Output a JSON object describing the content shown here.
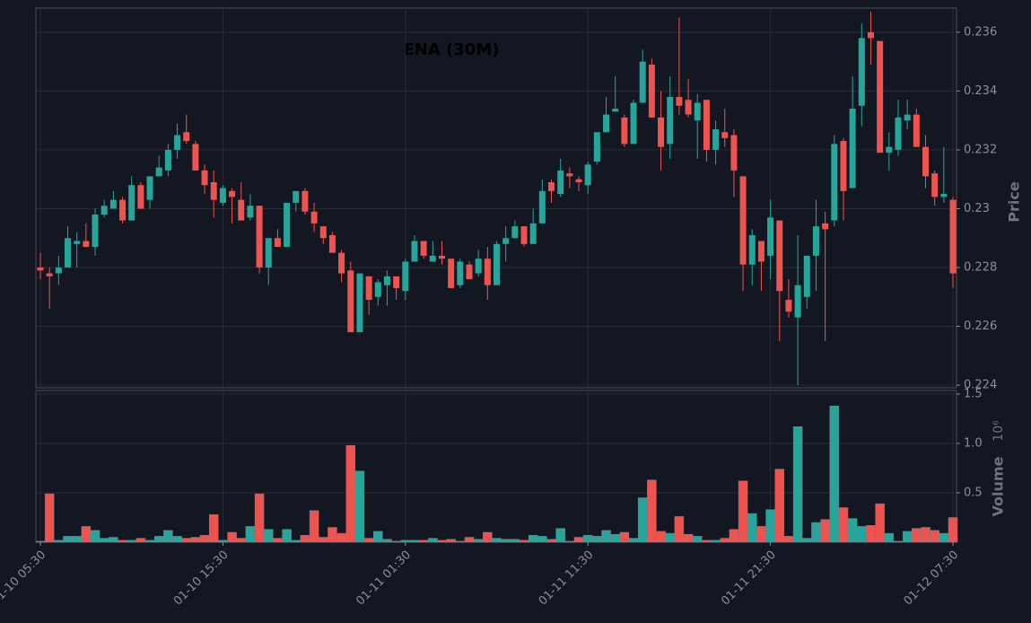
{
  "chart_data": [
    {
      "type": "candlestick",
      "title": "ENA (30M)",
      "ylabel": "Price",
      "categories": [
        "01-10 05:30",
        null,
        null,
        null,
        null,
        null,
        null,
        null,
        null,
        null,
        null,
        null,
        null,
        null,
        null,
        null,
        null,
        null,
        null,
        null,
        "01-10 15:30",
        null,
        null,
        null,
        null,
        null,
        null,
        null,
        null,
        null,
        null,
        null,
        null,
        null,
        null,
        null,
        null,
        null,
        null,
        null,
        "01-11 01:30",
        null,
        null,
        null,
        null,
        null,
        null,
        null,
        null,
        null,
        null,
        null,
        null,
        null,
        null,
        null,
        null,
        null,
        null,
        null,
        "01-11 11:30",
        null,
        null,
        null,
        null,
        null,
        null,
        null,
        null,
        null,
        null,
        null,
        null,
        null,
        null,
        null,
        null,
        null,
        null,
        null,
        "01-11 21:30",
        null,
        null,
        null,
        null,
        null,
        null,
        null,
        null,
        null,
        null,
        null,
        null,
        null,
        null,
        null,
        null,
        null,
        null,
        null,
        "01-12 07:30"
      ],
      "open": [
        0.228,
        0.2278,
        0.2278,
        0.228,
        0.2288,
        0.2289,
        0.2287,
        0.2298,
        0.23,
        0.2303,
        0.2296,
        0.2308,
        0.2303,
        0.2311,
        0.2313,
        0.232,
        0.2326,
        0.2322,
        0.2313,
        0.2309,
        0.2302,
        0.2306,
        0.2303,
        0.2297,
        0.2301,
        0.228,
        0.229,
        0.2287,
        0.2302,
        0.2306,
        0.2299,
        0.2294,
        0.2291,
        0.2285,
        0.2279,
        0.2258,
        0.2277,
        0.227,
        0.2274,
        0.2277,
        0.2272,
        0.2282,
        0.2289,
        0.2282,
        0.2284,
        0.2283,
        0.2274,
        0.2281,
        0.2278,
        0.2283,
        0.2274,
        0.2288,
        0.229,
        0.2294,
        0.2288,
        0.2295,
        0.2309,
        0.2305,
        0.2312,
        0.231,
        0.2308,
        0.2316,
        0.2326,
        0.2333,
        0.2331,
        0.2322,
        0.2336,
        0.2349,
        0.2331,
        0.2322,
        0.2338,
        0.2337,
        0.233,
        0.2337,
        0.232,
        0.2326,
        0.2325,
        0.2311,
        0.2281,
        0.2289,
        0.2284,
        0.2296,
        0.2269,
        0.2263,
        0.227,
        0.2284,
        0.2295,
        0.2296,
        0.2323,
        0.2307,
        0.2335,
        0.236,
        0.2357,
        0.2319,
        0.232,
        0.233,
        0.2332,
        0.2321,
        0.2312,
        0.2304,
        0.2303
      ],
      "high": [
        0.2285,
        0.228,
        0.2284,
        0.2294,
        0.2292,
        0.2295,
        0.23,
        0.2303,
        0.2306,
        0.2304,
        0.2311,
        0.2309,
        0.2311,
        0.2318,
        0.2322,
        0.2329,
        0.2332,
        0.2323,
        0.2315,
        0.2313,
        0.2308,
        0.2307,
        0.2309,
        0.2305,
        0.2301,
        0.229,
        0.2293,
        0.2302,
        0.2306,
        0.2307,
        0.2302,
        0.2294,
        0.2292,
        0.2286,
        0.2282,
        0.2278,
        0.2277,
        0.2276,
        0.2279,
        0.2277,
        0.2283,
        0.2291,
        0.2289,
        0.2289,
        0.2289,
        0.2283,
        0.2283,
        0.2282,
        0.2286,
        0.2287,
        0.2289,
        0.2294,
        0.2296,
        0.2294,
        0.23,
        0.231,
        0.231,
        0.2317,
        0.2314,
        0.2311,
        0.2316,
        0.2326,
        0.2338,
        0.2345,
        0.2332,
        0.2337,
        0.2354,
        0.2351,
        0.234,
        0.2345,
        0.2365,
        0.2344,
        0.2339,
        0.2337,
        0.233,
        0.2334,
        0.2327,
        0.2311,
        0.2293,
        0.2289,
        0.2303,
        0.2296,
        0.2276,
        0.2291,
        0.2284,
        0.2303,
        0.2299,
        0.2325,
        0.2324,
        0.2345,
        0.2363,
        0.2367,
        0.2357,
        0.2326,
        0.2337,
        0.2337,
        0.2334,
        0.2325,
        0.2313,
        0.2321,
        0.2304
      ],
      "low": [
        0.2276,
        0.2266,
        0.2274,
        0.228,
        0.228,
        0.2287,
        0.2284,
        0.2297,
        0.23,
        0.2295,
        0.2296,
        0.23,
        0.23,
        0.2311,
        0.2311,
        0.2317,
        0.2322,
        0.2313,
        0.2305,
        0.2297,
        0.2301,
        0.2295,
        0.2296,
        0.2296,
        0.2278,
        0.2274,
        0.2287,
        0.2287,
        0.2299,
        0.2298,
        0.2292,
        0.2288,
        0.2285,
        0.2275,
        0.2258,
        0.2258,
        0.2264,
        0.2267,
        0.2267,
        0.2269,
        0.2269,
        0.2282,
        0.2283,
        0.2282,
        0.2281,
        0.2273,
        0.2273,
        0.2276,
        0.2277,
        0.2269,
        0.2274,
        0.2282,
        0.229,
        0.2287,
        0.2288,
        0.2295,
        0.2302,
        0.2304,
        0.2307,
        0.2306,
        0.2305,
        0.2315,
        0.2326,
        0.2333,
        0.2321,
        0.2322,
        0.2336,
        0.2331,
        0.2313,
        0.2317,
        0.2332,
        0.2331,
        0.2317,
        0.2316,
        0.2315,
        0.2321,
        0.2304,
        0.2272,
        0.2274,
        0.2272,
        0.2276,
        0.2255,
        0.2263,
        0.224,
        0.2266,
        0.2272,
        0.2255,
        0.2294,
        0.2296,
        0.2307,
        0.2328,
        0.2349,
        0.2319,
        0.2313,
        0.2318,
        0.2327,
        0.2321,
        0.2307,
        0.2301,
        0.2302,
        0.2273
      ],
      "close": [
        0.2279,
        0.2277,
        0.228,
        0.229,
        0.2289,
        0.2287,
        0.2298,
        0.2301,
        0.2303,
        0.2296,
        0.2308,
        0.23,
        0.2311,
        0.2314,
        0.232,
        0.2325,
        0.2323,
        0.2313,
        0.2308,
        0.2303,
        0.2307,
        0.2304,
        0.2296,
        0.2301,
        0.228,
        0.229,
        0.2287,
        0.2302,
        0.2306,
        0.2299,
        0.2295,
        0.229,
        0.2285,
        0.2278,
        0.2258,
        0.2278,
        0.2269,
        0.2275,
        0.2277,
        0.2273,
        0.2282,
        0.2289,
        0.2284,
        0.2284,
        0.2283,
        0.2273,
        0.2282,
        0.2276,
        0.2283,
        0.2274,
        0.2288,
        0.229,
        0.2294,
        0.2288,
        0.2295,
        0.2306,
        0.2306,
        0.2313,
        0.2311,
        0.2309,
        0.2315,
        0.2326,
        0.2332,
        0.2334,
        0.2322,
        0.2336,
        0.235,
        0.2331,
        0.2321,
        0.2338,
        0.2335,
        0.2332,
        0.2336,
        0.232,
        0.2327,
        0.2324,
        0.2313,
        0.2281,
        0.2291,
        0.2282,
        0.2297,
        0.2272,
        0.2265,
        0.2274,
        0.2284,
        0.2294,
        0.2293,
        0.2322,
        0.2306,
        0.2334,
        0.2358,
        0.2358,
        0.2319,
        0.2321,
        0.2331,
        0.2332,
        0.2321,
        0.2311,
        0.2304,
        0.2305,
        0.2278
      ],
      "up_color": "#26a69a",
      "down_color": "#ef5350",
      "ylim": [
        0.22391,
        0.23682
      ],
      "yticks": [
        0.224,
        0.226,
        0.228,
        0.23,
        0.232,
        0.234,
        0.236
      ],
      "grid": true
    },
    {
      "type": "bar",
      "ylabel": "Volume",
      "yscale_label": "10⁶",
      "values": [
        0.01,
        0.49,
        0.02,
        0.06,
        0.06,
        0.16,
        0.12,
        0.04,
        0.05,
        0.02,
        0.02,
        0.04,
        0.02,
        0.06,
        0.12,
        0.06,
        0.04,
        0.05,
        0.07,
        0.28,
        0.02,
        0.1,
        0.04,
        0.16,
        0.49,
        0.13,
        0.04,
        0.13,
        0.02,
        0.07,
        0.32,
        0.05,
        0.15,
        0.09,
        0.98,
        0.72,
        0.04,
        0.11,
        0.03,
        0.01,
        0.02,
        0.02,
        0.02,
        0.04,
        0.02,
        0.03,
        0.01,
        0.05,
        0.03,
        0.1,
        0.04,
        0.03,
        0.03,
        0.02,
        0.07,
        0.06,
        0.03,
        0.14,
        0.01,
        0.05,
        0.07,
        0.06,
        0.12,
        0.08,
        0.1,
        0.04,
        0.45,
        0.63,
        0.11,
        0.09,
        0.26,
        0.08,
        0.06,
        0.02,
        0.02,
        0.04,
        0.13,
        0.62,
        0.29,
        0.16,
        0.33,
        0.74,
        0.06,
        1.17,
        0.04,
        0.2,
        0.23,
        1.38,
        0.35,
        0.24,
        0.16,
        0.17,
        0.39,
        0.09,
        0.01,
        0.11,
        0.14,
        0.15,
        0.12,
        0.09,
        0.25
      ],
      "ylim": [
        0,
        1.536
      ],
      "yticks": [
        0.5,
        {
          "value": 1,
          "label": "1.0"
        },
        1.5
      ],
      "grid": true
    }
  ]
}
